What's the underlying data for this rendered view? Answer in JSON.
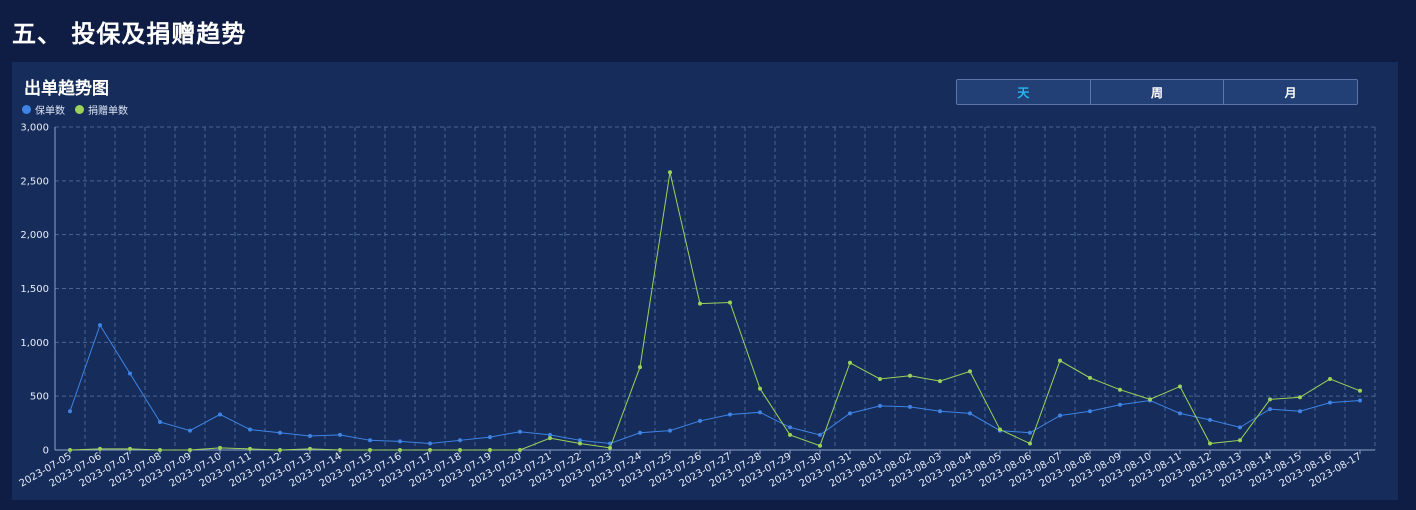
{
  "page": {
    "title": "五、 投保及捐赠趋势"
  },
  "panel": {
    "title": "出单趋势图"
  },
  "toggle": [
    {
      "label": "天",
      "active": true
    },
    {
      "label": "周",
      "active": false
    },
    {
      "label": "月",
      "active": false
    }
  ],
  "chart_data": {
    "type": "line",
    "title": "",
    "xlabel": "",
    "ylabel": "",
    "ylim": [
      0,
      3000
    ],
    "yticks": [
      "0",
      "500",
      "1,000",
      "1,500",
      "2,000",
      "2,500",
      "3,000"
    ],
    "grid": true,
    "legend_placement": "top-left",
    "x": [
      "2023-07-05",
      "2023-07-06",
      "2023-07-07",
      "2023-07-08",
      "2023-07-09",
      "2023-07-10",
      "2023-07-11",
      "2023-07-12",
      "2023-07-13",
      "2023-07-14",
      "2023-07-15",
      "2023-07-16",
      "2023-07-17",
      "2023-07-18",
      "2023-07-19",
      "2023-07-20",
      "2023-07-21",
      "2023-07-22",
      "2023-07-23",
      "2023-07-24",
      "2023-07-25",
      "2023-07-26",
      "2023-07-27",
      "2023-07-28",
      "2023-07-29",
      "2023-07-30",
      "2023-07-31",
      "2023-08-01",
      "2023-08-02",
      "2023-08-03",
      "2023-08-04",
      "2023-08-05",
      "2023-08-06",
      "2023-08-07",
      "2023-08-08",
      "2023-08-09",
      "2023-08-10",
      "2023-08-11",
      "2023-08-12",
      "2023-08-13",
      "2023-08-14",
      "2023-08-15",
      "2023-08-16",
      "2023-08-17"
    ],
    "series": [
      {
        "name": "保单数",
        "color": "#3f84e5",
        "values": [
          360,
          1160,
          710,
          260,
          180,
          330,
          190,
          160,
          130,
          140,
          90,
          80,
          60,
          90,
          120,
          170,
          140,
          90,
          60,
          160,
          180,
          270,
          330,
          350,
          210,
          140,
          340,
          410,
          400,
          360,
          340,
          180,
          160,
          320,
          360,
          420,
          460,
          340,
          280,
          210,
          380,
          360,
          440,
          460
        ]
      },
      {
        "name": "捐赠单数",
        "color": "#9cd25a",
        "values": [
          0,
          10,
          10,
          0,
          0,
          20,
          10,
          0,
          10,
          0,
          0,
          0,
          0,
          0,
          0,
          0,
          110,
          60,
          20,
          770,
          2580,
          1360,
          1370,
          570,
          140,
          40,
          810,
          660,
          690,
          640,
          730,
          190,
          60,
          830,
          670,
          560,
          470,
          590,
          60,
          90,
          470,
          490,
          660,
          550
        ]
      }
    ]
  }
}
